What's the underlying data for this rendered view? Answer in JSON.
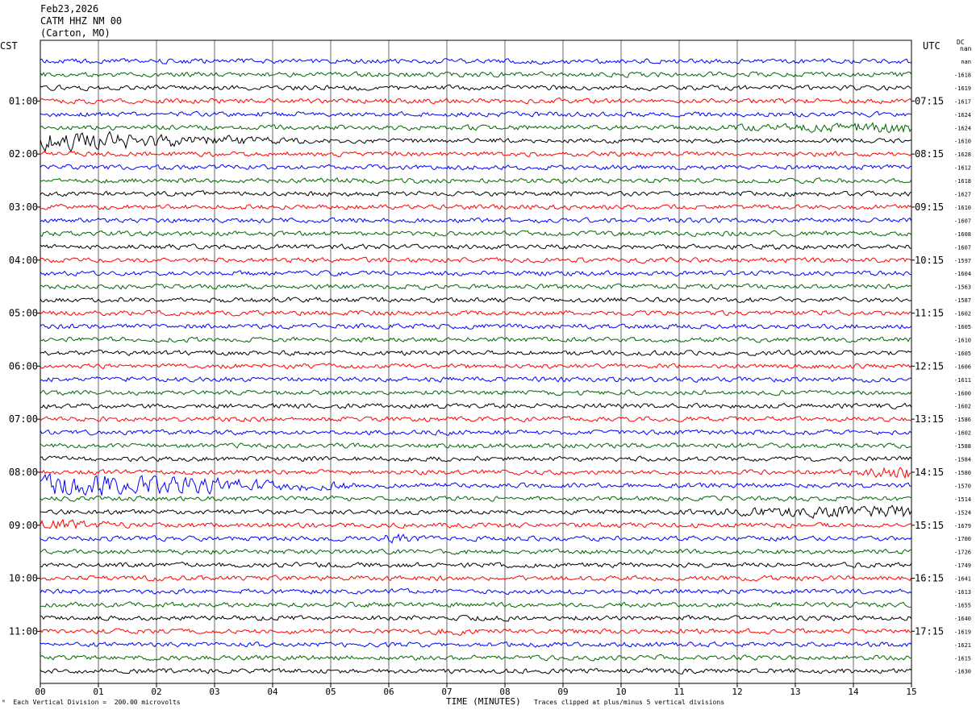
{
  "header": {
    "date": "Feb23,2026",
    "station": "CATM HHZ NM 00",
    "location": "(Carton, MO)"
  },
  "labels": {
    "left_timezone": "CST",
    "right_timezone": "UTC",
    "dc_top": "DC",
    "dc_sub": "nan",
    "footnote_scale": "Each Vertical Division =  200.00 microvolts",
    "footnote_clip": "Traces clipped at plus/minus 5 vertical divisions",
    "corner_mark": "ᴹ"
  },
  "chart_data": {
    "type": "line",
    "xlabel": "TIME (MINUTES)",
    "xlim": [
      0,
      15
    ],
    "x_ticks": [
      "00",
      "01",
      "02",
      "03",
      "04",
      "05",
      "06",
      "07",
      "08",
      "09",
      "10",
      "11",
      "12",
      "13",
      "14",
      "15"
    ],
    "left_hour_labels": [
      "01:00",
      "02:00",
      "03:00",
      "04:00",
      "05:00",
      "06:00",
      "07:00",
      "08:00",
      "09:00",
      "10:00",
      "11:00"
    ],
    "right_hour_labels": [
      "07:15",
      "08:15",
      "09:15",
      "10:15",
      "11:15",
      "12:15",
      "13:15",
      "14:15",
      "15:15",
      "16:15",
      "17:15"
    ],
    "trace_colors": [
      "#0000ff",
      "#006600",
      "#000000",
      "#ff0000"
    ],
    "traces_per_hour": 4,
    "dc_offsets": [
      "nan",
      "-1618",
      "-1619",
      "-1617",
      "-1624",
      "-1624",
      "-1610",
      "-1628",
      "-1612",
      "-1618",
      "-1627",
      "-1610",
      "-1607",
      "-1608",
      "-1607",
      "-1597",
      "-1604",
      "-1563",
      "-1587",
      "-1602",
      "-1605",
      "-1610",
      "-1605",
      "-1606",
      "-1611",
      "-1600",
      "-1602",
      "-1586",
      "-1602",
      "-1588",
      "-1584",
      "-1580",
      "-1570",
      "-1514",
      "-1524",
      "-1679",
      "-1700",
      "-1726",
      "-1749",
      "-1641",
      "-1613",
      "-1655",
      "-1640",
      "-1619",
      "-1621",
      "-1615",
      "-1630"
    ],
    "events": [
      {
        "trace": 5,
        "minutes": [
          10.5,
          15
        ],
        "amplitude": 2.4
      },
      {
        "trace": 6,
        "minutes": [
          0,
          4.5
        ],
        "amplitude": 4.0
      },
      {
        "trace": 31,
        "minutes": [
          13.5,
          15
        ],
        "amplitude": 2.8
      },
      {
        "trace": 32,
        "minutes": [
          0,
          5.5
        ],
        "amplitude": 5.0
      },
      {
        "trace": 34,
        "minutes": [
          10.5,
          15
        ],
        "amplitude": 3.0
      },
      {
        "trace": 35,
        "minutes": [
          0,
          2.0
        ],
        "amplitude": 2.6
      },
      {
        "trace": 36,
        "minutes": [
          5.5,
          6.8
        ],
        "amplitude": 1.8
      },
      {
        "trace": 43,
        "minutes": [
          6.0,
          8.0
        ],
        "amplitude": 1.6
      }
    ]
  }
}
